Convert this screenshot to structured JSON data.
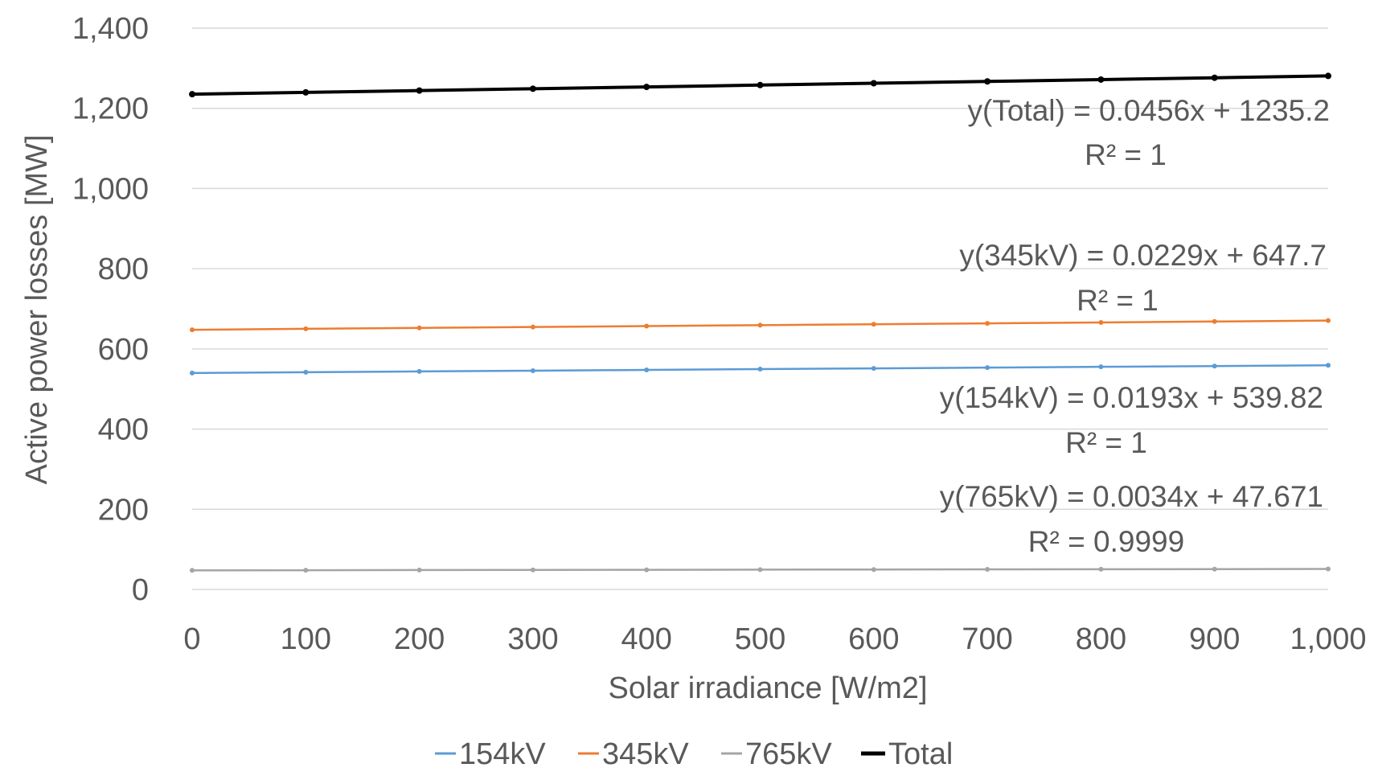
{
  "chart_data": {
    "type": "line",
    "xlabel": "Solar irradiance [W/m2]",
    "ylabel": "Active power losses [MW]",
    "xlim": [
      0,
      1000
    ],
    "ylim": [
      0,
      1400
    ],
    "x_ticks": [
      "0",
      "100",
      "200",
      "300",
      "400",
      "500",
      "600",
      "700",
      "800",
      "900",
      "1,000"
    ],
    "y_ticks": [
      "0",
      "200",
      "400",
      "600",
      "800",
      "1,000",
      "1,200",
      "1,400"
    ],
    "grid": "horizontal",
    "legend_position": "bottom",
    "x": [
      0,
      100,
      200,
      300,
      400,
      500,
      600,
      700,
      800,
      900,
      1000
    ],
    "series": [
      {
        "name": "154kV",
        "color": "#5B9BD5",
        "values": [
          539.8,
          541.8,
          543.7,
          545.6,
          547.5,
          549.5,
          551.4,
          553.3,
          555.3,
          557.2,
          559.1
        ]
      },
      {
        "name": "345kV",
        "color": "#ED7D31",
        "values": [
          647.7,
          650.0,
          652.3,
          654.6,
          656.9,
          659.2,
          661.4,
          663.7,
          666.0,
          668.3,
          670.6
        ]
      },
      {
        "name": "765kV",
        "color": "#A5A5A5",
        "values": [
          47.7,
          48.0,
          48.4,
          48.7,
          49.0,
          49.4,
          49.7,
          50.1,
          50.4,
          50.7,
          51.1
        ]
      },
      {
        "name": "Total",
        "color": "#000000",
        "values": [
          1235.2,
          1239.8,
          1244.3,
          1248.9,
          1253.4,
          1258.0,
          1262.6,
          1267.1,
          1271.7,
          1276.2,
          1280.8
        ]
      }
    ],
    "annotations": [
      {
        "line1": "y(Total) = 0.0456x + 1235.2",
        "line2": "R² = 1"
      },
      {
        "line1": "y(345kV) = 0.0229x + 647.7",
        "line2": "R² = 1"
      },
      {
        "line1": "y(154kV) = 0.0193x + 539.82",
        "line2": "R² = 1"
      },
      {
        "line1": "y(765kV) = 0.0034x + 47.671",
        "line2": "R² = 0.9999"
      }
    ]
  }
}
